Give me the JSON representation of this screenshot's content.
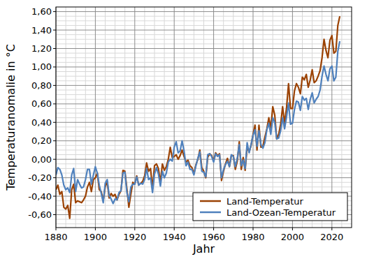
{
  "chart_data": {
    "type": "line",
    "x_label": "Jahr",
    "y_label": "Temperaturanomalie in °C",
    "x": [
      1880,
      1881,
      1882,
      1883,
      1884,
      1885,
      1886,
      1887,
      1888,
      1889,
      1890,
      1891,
      1892,
      1893,
      1894,
      1895,
      1896,
      1897,
      1898,
      1899,
      1900,
      1901,
      1902,
      1903,
      1904,
      1905,
      1906,
      1907,
      1908,
      1909,
      1910,
      1911,
      1912,
      1913,
      1914,
      1915,
      1916,
      1917,
      1918,
      1919,
      1920,
      1921,
      1922,
      1923,
      1924,
      1925,
      1926,
      1927,
      1928,
      1929,
      1930,
      1931,
      1932,
      1933,
      1934,
      1935,
      1936,
      1937,
      1938,
      1939,
      1940,
      1941,
      1942,
      1943,
      1944,
      1945,
      1946,
      1947,
      1948,
      1949,
      1950,
      1951,
      1952,
      1953,
      1954,
      1955,
      1956,
      1957,
      1958,
      1959,
      1960,
      1961,
      1962,
      1963,
      1964,
      1965,
      1966,
      1967,
      1968,
      1969,
      1970,
      1971,
      1972,
      1973,
      1974,
      1975,
      1976,
      1977,
      1978,
      1979,
      1980,
      1981,
      1982,
      1983,
      1984,
      1985,
      1986,
      1987,
      1988,
      1989,
      1990,
      1991,
      1992,
      1993,
      1994,
      1995,
      1996,
      1997,
      1998,
      1999,
      2000,
      2001,
      2002,
      2003,
      2004,
      2005,
      2006,
      2007,
      2008,
      2009,
      2010,
      2011,
      2012,
      2013,
      2014,
      2015,
      2016,
      2017,
      2018,
      2019,
      2020,
      2021,
      2022,
      2023,
      2024
    ],
    "series": [
      {
        "name": "Land-Temperatur",
        "color": "#9b4203",
        "values": [
          -0.33,
          -0.28,
          -0.38,
          -0.35,
          -0.52,
          -0.54,
          -0.5,
          -0.64,
          -0.33,
          -0.27,
          -0.47,
          -0.45,
          -0.46,
          -0.47,
          -0.44,
          -0.4,
          -0.3,
          -0.25,
          -0.35,
          -0.22,
          -0.2,
          -0.15,
          -0.33,
          -0.35,
          -0.45,
          -0.3,
          -0.24,
          -0.42,
          -0.37,
          -0.4,
          -0.38,
          -0.44,
          -0.38,
          -0.34,
          -0.12,
          -0.13,
          -0.32,
          -0.52,
          -0.38,
          -0.25,
          -0.27,
          -0.18,
          -0.28,
          -0.26,
          -0.24,
          -0.18,
          -0.04,
          -0.13,
          -0.1,
          -0.32,
          -0.07,
          -0.05,
          -0.1,
          -0.25,
          -0.05,
          -0.12,
          -0.08,
          0.0,
          0.13,
          0.02,
          0.03,
          0.05,
          0.0,
          0.04,
          0.1,
          0.03,
          -0.03,
          -0.01,
          -0.07,
          -0.09,
          -0.16,
          -0.06,
          0.0,
          0.1,
          -0.09,
          -0.13,
          -0.2,
          0.02,
          0.06,
          0.04,
          -0.02,
          0.07,
          0.04,
          0.06,
          -0.23,
          -0.13,
          -0.05,
          0.01,
          -0.08,
          0.04,
          0.04,
          -0.11,
          -0.02,
          0.19,
          -0.11,
          0.02,
          -0.12,
          0.14,
          0.08,
          0.15,
          0.27,
          0.37,
          0.1,
          0.37,
          0.13,
          0.14,
          0.24,
          0.33,
          0.45,
          0.34,
          0.57,
          0.48,
          0.22,
          0.27,
          0.38,
          0.57,
          0.39,
          0.56,
          0.82,
          0.55,
          0.55,
          0.74,
          0.82,
          0.78,
          0.71,
          0.89,
          0.86,
          0.92,
          0.78,
          0.86,
          0.97,
          0.83,
          0.85,
          0.9,
          0.96,
          1.1,
          1.3,
          1.18,
          1.1,
          1.29,
          1.34,
          1.15,
          1.17,
          1.45,
          1.55
        ]
      },
      {
        "name": "Land-Ozean-Temperatur",
        "color": "#4f81bd",
        "values": [
          -0.17,
          -0.09,
          -0.11,
          -0.17,
          -0.28,
          -0.33,
          -0.31,
          -0.36,
          -0.17,
          -0.1,
          -0.35,
          -0.22,
          -0.27,
          -0.31,
          -0.3,
          -0.22,
          -0.11,
          -0.11,
          -0.27,
          -0.17,
          -0.08,
          -0.15,
          -0.28,
          -0.37,
          -0.47,
          -0.26,
          -0.22,
          -0.39,
          -0.43,
          -0.48,
          -0.43,
          -0.44,
          -0.36,
          -0.34,
          -0.15,
          -0.14,
          -0.36,
          -0.46,
          -0.3,
          -0.27,
          -0.27,
          -0.19,
          -0.28,
          -0.26,
          -0.27,
          -0.22,
          -0.1,
          -0.22,
          -0.2,
          -0.36,
          -0.16,
          -0.09,
          -0.16,
          -0.29,
          -0.13,
          -0.2,
          -0.15,
          -0.03,
          0.0,
          -0.02,
          0.13,
          0.19,
          0.07,
          0.09,
          0.2,
          0.09,
          -0.07,
          -0.03,
          -0.11,
          -0.11,
          -0.17,
          -0.07,
          0.01,
          0.08,
          -0.13,
          -0.14,
          -0.19,
          0.05,
          0.06,
          0.03,
          -0.03,
          0.06,
          0.03,
          0.05,
          -0.2,
          -0.11,
          -0.06,
          -0.02,
          -0.08,
          0.05,
          0.03,
          -0.08,
          0.01,
          0.16,
          -0.07,
          -0.01,
          -0.1,
          0.18,
          0.07,
          0.16,
          0.26,
          0.32,
          0.14,
          0.31,
          0.16,
          0.12,
          0.18,
          0.32,
          0.39,
          0.27,
          0.45,
          0.4,
          0.22,
          0.23,
          0.31,
          0.45,
          0.33,
          0.46,
          0.61,
          0.38,
          0.39,
          0.54,
          0.63,
          0.62,
          0.53,
          0.68,
          0.64,
          0.66,
          0.54,
          0.65,
          0.72,
          0.61,
          0.65,
          0.68,
          0.75,
          0.9,
          1.01,
          0.92,
          0.85,
          0.98,
          1.01,
          0.85,
          0.89,
          1.17,
          1.28
        ]
      }
    ],
    "xlim": [
      1880,
      2030
    ],
    "ylim": [
      -0.74,
      1.65
    ],
    "xticks": [
      1880,
      1900,
      1920,
      1940,
      1960,
      1980,
      2000,
      2020
    ],
    "yticks": [
      {
        "value": -0.6,
        "label": "-0,60"
      },
      {
        "value": -0.4,
        "label": "-0,40"
      },
      {
        "value": -0.2,
        "label": "-0,20"
      },
      {
        "value": 0,
        "label": "0,00"
      },
      {
        "value": 0.2,
        "label": "0,20"
      },
      {
        "value": 0.4,
        "label": "0,40"
      },
      {
        "value": 0.6,
        "label": "0,60"
      },
      {
        "value": 0.8,
        "label": "0,80"
      },
      {
        "value": 1.0,
        "label": "1,00"
      },
      {
        "value": 1.2,
        "label": "1,20"
      },
      {
        "value": 1.4,
        "label": "1,40"
      },
      {
        "value": 1.6,
        "label": "1,60"
      }
    ],
    "grid": true,
    "legend": "lower right"
  }
}
